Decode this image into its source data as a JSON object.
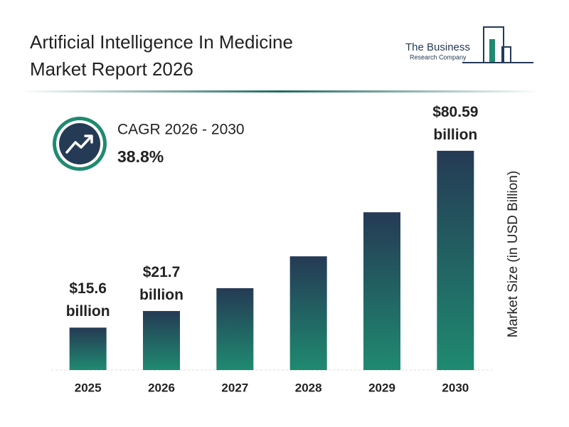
{
  "header": {
    "title": "Artificial Intelligence In Medicine Market Report 2026",
    "logo": {
      "line1": "The Business",
      "line2": "Research Company"
    }
  },
  "chart_data": {
    "type": "bar",
    "categories": [
      "2025",
      "2026",
      "2027",
      "2028",
      "2029",
      "2030"
    ],
    "values": [
      15.6,
      21.7,
      30.1,
      41.8,
      58.0,
      80.59
    ],
    "value_labels": [
      "$15.6 billion",
      "$21.7 billion",
      null,
      null,
      null,
      "$80.59 billion"
    ],
    "y_label": "Market Size (in USD Billion)",
    "ylim": [
      0,
      85
    ],
    "color": "#253a55",
    "color_bottom": "#1f8a70",
    "annotation": {
      "label": "CAGR 2026 - 2030",
      "value": "38.8%"
    }
  }
}
